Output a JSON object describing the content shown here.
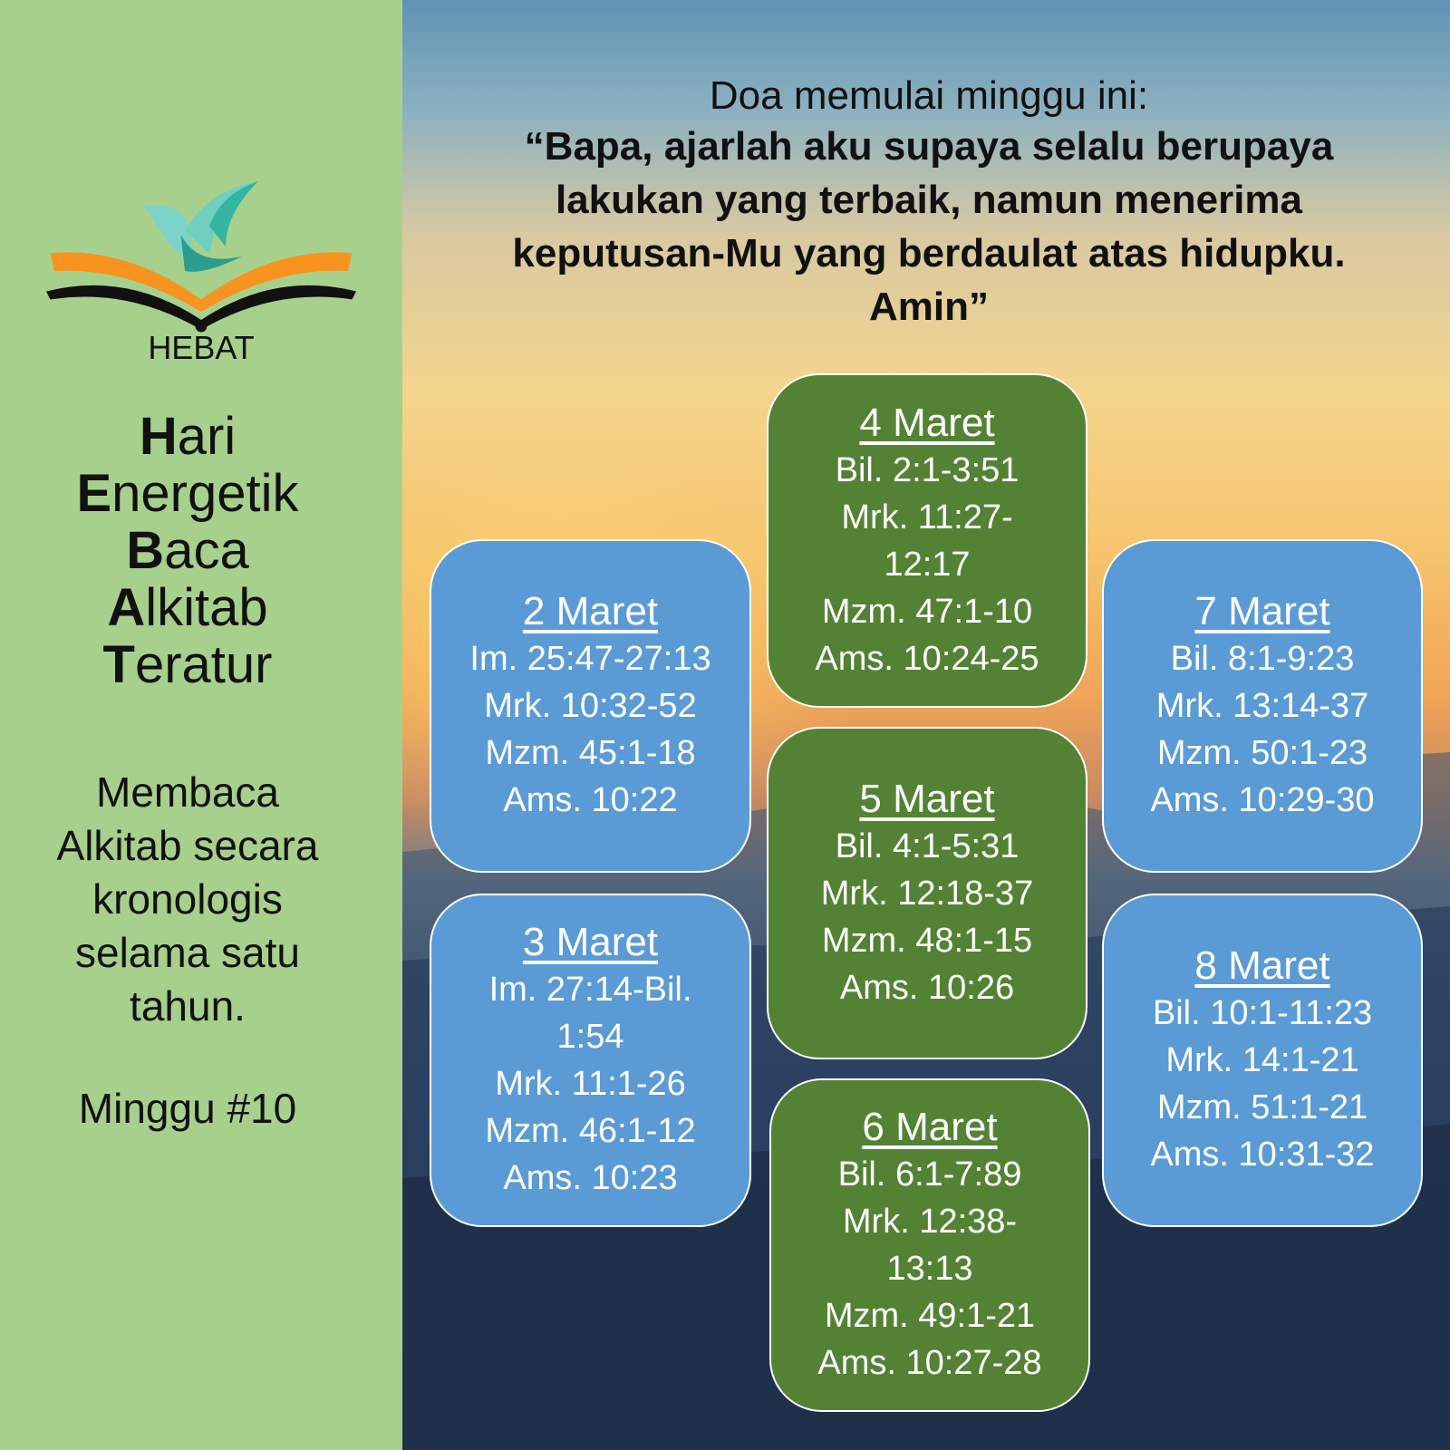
{
  "left_panel": {
    "logo_text": "HEBAT",
    "acronym": [
      {
        "initial": "H",
        "rest": "ari"
      },
      {
        "initial": "E",
        "rest": "nergetik"
      },
      {
        "initial": "B",
        "rest": "aca"
      },
      {
        "initial": "A",
        "rest": "lkitab"
      },
      {
        "initial": "T",
        "rest": "eratur"
      }
    ],
    "description": [
      "Membaca",
      "Alkitab secara",
      "kronologis",
      "selama satu",
      "tahun."
    ],
    "week": "Minggu #10"
  },
  "prayer": {
    "intro": "Doa memulai minggu ini:",
    "lines": [
      "“Bapa, ajarlah aku supaya selalu berupaya",
      "lakukan yang terbaik, namun menerima",
      "keputusan-Mu yang berdaulat atas hidupku.",
      "Amin”"
    ]
  },
  "colors": {
    "left_panel": "#a8d08d",
    "blue_box": "#5b9bd5",
    "green_box": "#548235"
  },
  "days": [
    {
      "date": "2 Maret",
      "color": "blue",
      "refs": [
        "Im. 25:47-27:13",
        "Mrk. 10:32-52",
        "Mzm. 45:1-18",
        "Ams. 10:22"
      ]
    },
    {
      "date": "3 Maret",
      "color": "blue",
      "refs": [
        "Im. 27:14-Bil.",
        "1:54",
        "Mrk. 11:1-26",
        "Mzm. 46:1-12",
        "Ams. 10:23"
      ]
    },
    {
      "date": "4 Maret",
      "color": "green",
      "refs": [
        "Bil. 2:1-3:51",
        "Mrk. 11:27-",
        "12:17",
        "Mzm. 47:1-10",
        "Ams. 10:24-25"
      ]
    },
    {
      "date": "5 Maret",
      "color": "green",
      "refs": [
        "Bil. 4:1-5:31",
        "Mrk. 12:18-37",
        "Mzm. 48:1-15",
        "Ams. 10:26"
      ]
    },
    {
      "date": "6 Maret",
      "color": "green",
      "refs": [
        "Bil. 6:1-7:89",
        "Mrk. 12:38-",
        "13:13",
        "Mzm. 49:1-21",
        "Ams. 10:27-28"
      ]
    },
    {
      "date": "7 Maret",
      "color": "blue",
      "refs": [
        "Bil. 8:1-9:23",
        "Mrk. 13:14-37",
        "Mzm. 50:1-23",
        "Ams. 10:29-30"
      ]
    },
    {
      "date": "8 Maret",
      "color": "blue",
      "refs": [
        "Bil. 10:1-11:23",
        "Mrk. 14:1-21",
        "Mzm. 51:1-21",
        "Ams. 10:31-32"
      ]
    }
  ]
}
